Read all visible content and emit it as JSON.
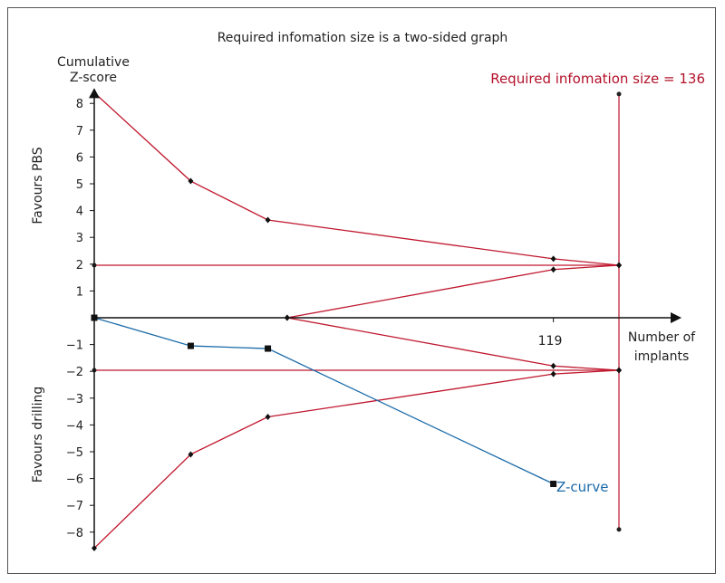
{
  "chart_data": {
    "type": "line",
    "title": "Required infomation size is a two-sided graph",
    "ylabel_line1": "Cumulative",
    "ylabel_line2": "Z-score",
    "xlabel_line1": "Number of",
    "xlabel_line2": "implants",
    "favours_top": "Favours PBS",
    "favours_bottom": "Favours drilling",
    "ris_label": "Required infomation size = 136",
    "zcurve_label": "Z-curve",
    "x_tick_label": "119",
    "x_tick_value": 119,
    "ris_value": 136,
    "ylim": [
      -8.5,
      8.5
    ],
    "y_ticks": [
      {
        "value": 8,
        "label": "8"
      },
      {
        "value": 7,
        "label": "7"
      },
      {
        "value": 6,
        "label": "6"
      },
      {
        "value": 5,
        "label": "5"
      },
      {
        "value": 4,
        "label": "4"
      },
      {
        "value": 3,
        "label": "3"
      },
      {
        "value": 2,
        "label": "2"
      },
      {
        "value": 1,
        "label": "1"
      },
      {
        "value": -1,
        "label": "−1"
      },
      {
        "value": -2,
        "label": "−2"
      },
      {
        "value": -3,
        "label": "−3"
      },
      {
        "value": -4,
        "label": "−4"
      },
      {
        "value": -5,
        "label": "−5"
      },
      {
        "value": -6,
        "label": "−6"
      },
      {
        "value": -7,
        "label": "−7"
      },
      {
        "value": -8,
        "label": "−8"
      }
    ],
    "series": [
      {
        "role": "upper-boundary",
        "color": "#c0182e",
        "points": [
          [
            0,
            8.4
          ],
          [
            25,
            5.1
          ],
          [
            45,
            3.65
          ],
          [
            119,
            2.2
          ],
          [
            136,
            1.96
          ]
        ]
      },
      {
        "role": "lower-boundary",
        "color": "#c0182e",
        "points": [
          [
            0,
            -8.6
          ],
          [
            25,
            -5.1
          ],
          [
            45,
            -3.7
          ],
          [
            119,
            -2.1
          ],
          [
            136,
            -1.96
          ]
        ]
      },
      {
        "role": "inner-upper",
        "color": "#c0182e",
        "points": [
          [
            50,
            0
          ],
          [
            119,
            1.8
          ],
          [
            136,
            1.96
          ]
        ]
      },
      {
        "role": "inner-lower",
        "color": "#c0182e",
        "points": [
          [
            50,
            0
          ],
          [
            119,
            -1.8
          ],
          [
            136,
            -1.96
          ]
        ]
      },
      {
        "role": "z-curve",
        "color": "#1a6aa8",
        "points": [
          [
            0,
            0
          ],
          [
            25,
            -1.05
          ],
          [
            45,
            -1.15
          ],
          [
            119,
            -6.2
          ]
        ]
      }
    ],
    "conventional_boundaries": [
      1.96,
      -1.96
    ],
    "colors": {
      "boundary": "#c0182e",
      "zcurve": "#1a6aa8",
      "axis": "#111111"
    }
  }
}
